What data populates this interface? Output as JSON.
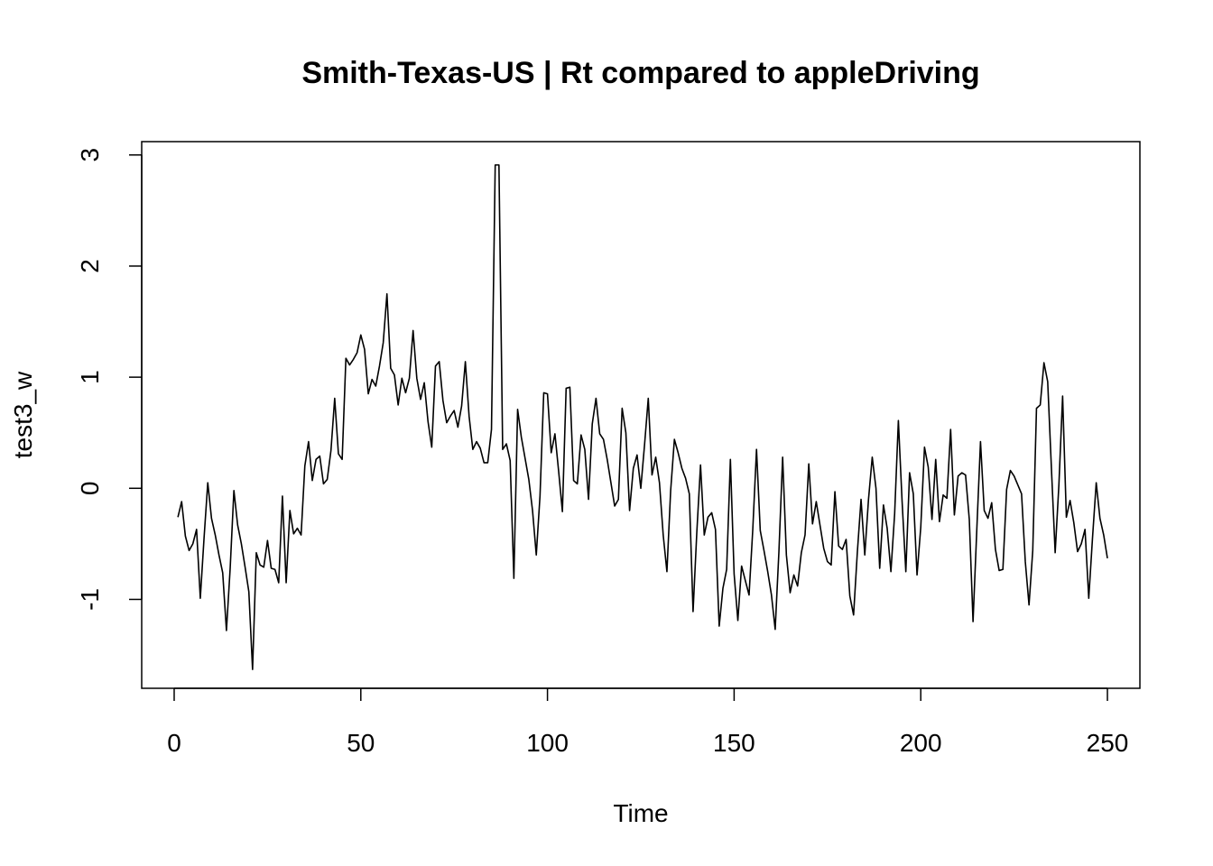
{
  "chart_data": {
    "type": "line",
    "title": "Smith-Texas-US | Rt compared to appleDriving",
    "xlabel": "Time",
    "ylabel": "test3_w",
    "xlim": [
      -8.7,
      258.7
    ],
    "ylim": [
      -1.8,
      3.12
    ],
    "x_ticks": [
      0,
      50,
      100,
      150,
      200,
      250
    ],
    "x_tick_labels": [
      "0",
      "50",
      "100",
      "150",
      "200",
      "250"
    ],
    "y_ticks": [
      -1,
      0,
      1,
      2,
      3
    ],
    "y_tick_labels": [
      "-1",
      "0",
      "1",
      "2",
      "3"
    ],
    "grid": false,
    "legend": "none",
    "series": [
      {
        "color": "#000000",
        "x_start": 1,
        "x_step": 1,
        "values": [
          -0.26,
          -0.12,
          -0.43,
          -0.56,
          -0.5,
          -0.37,
          -0.99,
          -0.45,
          0.05,
          -0.27,
          -0.42,
          -0.6,
          -0.76,
          -1.28,
          -0.72,
          -0.02,
          -0.33,
          -0.5,
          -0.71,
          -0.93,
          -1.63,
          -0.58,
          -0.69,
          -0.71,
          -0.47,
          -0.72,
          -0.73,
          -0.85,
          -0.07,
          -0.85,
          -0.2,
          -0.41,
          -0.36,
          -0.42,
          0.2,
          0.42,
          0.07,
          0.26,
          0.29,
          0.04,
          0.08,
          0.34,
          0.81,
          0.31,
          0.26,
          1.17,
          1.11,
          1.16,
          1.22,
          1.38,
          1.25,
          0.85,
          0.98,
          0.92,
          1.1,
          1.31,
          1.75,
          1.08,
          1.02,
          0.75,
          0.99,
          0.86,
          0.99,
          1.42,
          0.99,
          0.8,
          0.95,
          0.6,
          0.37,
          1.1,
          1.14,
          0.79,
          0.59,
          0.65,
          0.7,
          0.55,
          0.74,
          1.14,
          0.65,
          0.35,
          0.42,
          0.36,
          0.23,
          0.23,
          0.53,
          2.91,
          2.91,
          0.35,
          0.4,
          0.25,
          -0.81,
          0.71,
          0.46,
          0.27,
          0.08,
          -0.2,
          -0.6,
          -0.07,
          0.86,
          0.85,
          0.32,
          0.49,
          0.15,
          -0.21,
          0.9,
          0.91,
          0.07,
          0.04,
          0.48,
          0.35,
          -0.1,
          0.58,
          0.81,
          0.49,
          0.44,
          0.26,
          0.05,
          -0.16,
          -0.1,
          0.72,
          0.5,
          -0.2,
          0.18,
          0.3,
          0.0,
          0.39,
          0.81,
          0.12,
          0.28,
          0.05,
          -0.42,
          -0.75,
          -0.02,
          0.44,
          0.32,
          0.18,
          0.09,
          -0.05,
          -1.11,
          -0.4,
          0.21,
          -0.42,
          -0.26,
          -0.22,
          -0.37,
          -1.24,
          -0.9,
          -0.73,
          0.26,
          -0.77,
          -1.19,
          -0.7,
          -0.83,
          -0.96,
          -0.37,
          0.35,
          -0.38,
          -0.56,
          -0.75,
          -0.96,
          -1.27,
          -0.57,
          0.28,
          -0.6,
          -0.94,
          -0.78,
          -0.88,
          -0.58,
          -0.42,
          0.22,
          -0.32,
          -0.12,
          -0.33,
          -0.54,
          -0.66,
          -0.69,
          -0.03,
          -0.52,
          -0.55,
          -0.46,
          -0.97,
          -1.14,
          -0.58,
          -0.1,
          -0.6,
          -0.1,
          0.28,
          0.0,
          -0.72,
          -0.15,
          -0.36,
          -0.75,
          -0.23,
          0.61,
          -0.12,
          -0.75,
          0.14,
          -0.05,
          -0.78,
          -0.35,
          0.37,
          0.19,
          -0.28,
          0.26,
          -0.3,
          -0.06,
          -0.09,
          0.53,
          -0.24,
          0.11,
          0.14,
          0.12,
          -0.28,
          -1.2,
          -0.38,
          0.42,
          -0.2,
          -0.27,
          -0.13,
          -0.55,
          -0.74,
          -0.73,
          -0.01,
          0.16,
          0.11,
          0.03,
          -0.05,
          -0.66,
          -1.05,
          -0.56,
          0.72,
          0.75,
          1.13,
          0.96,
          0.18,
          -0.58,
          0.03,
          0.83,
          -0.26,
          -0.11,
          -0.31,
          -0.57,
          -0.5,
          -0.37,
          -0.99,
          -0.45,
          0.05,
          -0.27,
          -0.42,
          -0.63
        ]
      }
    ]
  }
}
